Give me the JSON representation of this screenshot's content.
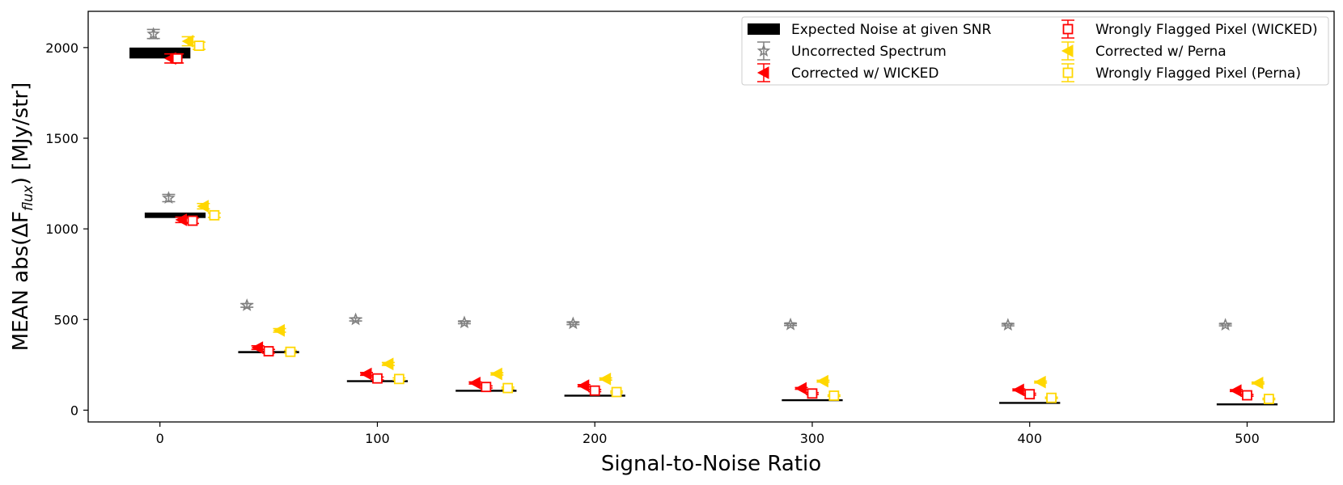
{
  "chart_data": {
    "type": "scatter",
    "title": "",
    "xlabel": "Signal-to-Noise Ratio",
    "ylabel_main": "MEAN abs(ΔF",
    "ylabel_sub": "flux",
    "ylabel_tail": ") [MJy/str]",
    "xlim": [
      -33,
      540
    ],
    "ylim": [
      -65,
      2200
    ],
    "x_ticks": [
      0,
      100,
      200,
      300,
      400,
      500
    ],
    "y_ticks": [
      0,
      500,
      1000,
      1500,
      2000
    ],
    "x_tick_labels": [
      "0",
      "100",
      "200",
      "300",
      "400",
      "500"
    ],
    "y_tick_labels": [
      "0",
      "500",
      "1000",
      "1500",
      "2000"
    ],
    "legend_position": "top-right",
    "snr": [
      0,
      50,
      100,
      150,
      200,
      300,
      400,
      500
    ],
    "colors": {
      "expected": "#000000",
      "uncorrected": "#808080",
      "wicked": "#ff0000",
      "perna": "#ffd700"
    },
    "series": [
      {
        "name": "Expected Noise at given SNR",
        "key": "expected",
        "marker": "bar",
        "x": [
          0,
          7,
          50,
          100,
          150,
          200,
          300,
          400,
          500
        ],
        "values": [
          1970,
          1075,
          320,
          160,
          107,
          80,
          55,
          40,
          32
        ],
        "err": [
          30,
          15,
          6,
          4,
          3,
          2,
          2,
          1.5,
          1
        ]
      },
      {
        "name": "Uncorrected Spectrum",
        "key": "uncorrected",
        "marker": "star",
        "x": [
          -3,
          4,
          40,
          90,
          140,
          190,
          290,
          390,
          490
        ],
        "values": [
          2075,
          1170,
          578,
          500,
          483,
          478,
          472,
          470,
          470
        ],
        "err": [
          25,
          20,
          10,
          8,
          6,
          6,
          5,
          5,
          5
        ]
      },
      {
        "name": "Corrected w/ WICKED",
        "key": "wicked",
        "marker": "triangle-left",
        "x": [
          5,
          10,
          45,
          95,
          145,
          195,
          295,
          395,
          495
        ],
        "values": [
          1940,
          1050,
          345,
          200,
          150,
          135,
          120,
          112,
          108
        ],
        "err": [
          25,
          15,
          10,
          8,
          6,
          6,
          5,
          5,
          5
        ]
      },
      {
        "name": "Wrongly Flagged Pixel (WICKED)",
        "key": "wicked",
        "marker": "square-open",
        "x": [
          8,
          15,
          50,
          100,
          150,
          200,
          300,
          400,
          500
        ],
        "values": [
          1940,
          1045,
          325,
          175,
          128,
          108,
          92,
          88,
          82
        ],
        "err": [
          25,
          15,
          10,
          8,
          6,
          6,
          5,
          5,
          5
        ]
      },
      {
        "name": "Corrected w/ Perna",
        "key": "perna",
        "marker": "triangle-left",
        "x": [
          13,
          20,
          55,
          105,
          155,
          205,
          305,
          405,
          505
        ],
        "values": [
          2035,
          1125,
          440,
          255,
          200,
          172,
          160,
          155,
          150
        ],
        "err": [
          25,
          15,
          10,
          8,
          6,
          6,
          5,
          5,
          5
        ]
      },
      {
        "name": "Wrongly Flagged Pixel (Perna)",
        "key": "perna",
        "marker": "square-open",
        "x": [
          18,
          25,
          60,
          110,
          160,
          210,
          310,
          410,
          510
        ],
        "values": [
          2010,
          1075,
          322,
          172,
          122,
          100,
          80,
          68,
          62
        ],
        "err": [
          20,
          12,
          8,
          6,
          5,
          5,
          4,
          4,
          4
        ]
      }
    ],
    "legend": [
      {
        "label": "Expected Noise at given SNR",
        "key": "expected",
        "marker": "bar"
      },
      {
        "label": "Uncorrected Spectrum",
        "key": "uncorrected",
        "marker": "star"
      },
      {
        "label": "Corrected w/ WICKED",
        "key": "wicked",
        "marker": "triangle-left"
      },
      {
        "label": "Wrongly Flagged Pixel (WICKED)",
        "key": "wicked",
        "marker": "square-open"
      },
      {
        "label": "Corrected w/ Perna",
        "key": "perna",
        "marker": "triangle-left"
      },
      {
        "label": "Wrongly Flagged Pixel (Perna)",
        "key": "perna",
        "marker": "square-open"
      }
    ]
  }
}
